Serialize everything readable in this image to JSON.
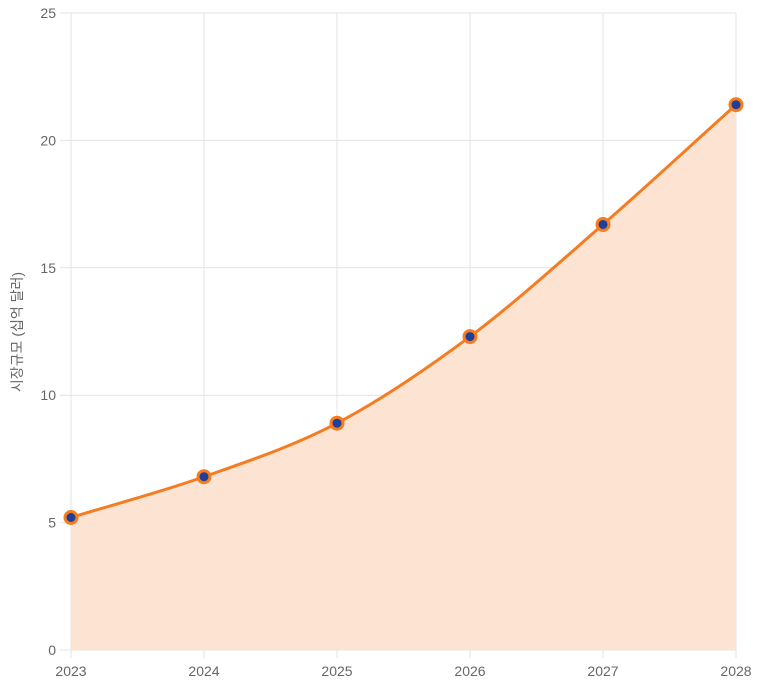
{
  "chart_data": {
    "type": "area",
    "x": [
      "2023",
      "2024",
      "2025",
      "2026",
      "2027",
      "2028"
    ],
    "series": [
      {
        "values": [
          5.2,
          6.8,
          8.9,
          12.3,
          16.7,
          21.4
        ]
      }
    ],
    "title": "",
    "xlabel": "",
    "ylabel": "시장규모 (십억 달러)",
    "ylim": [
      0,
      25
    ],
    "yticks": [
      "0",
      "5",
      "10",
      "15",
      "20",
      "25"
    ],
    "grid": true,
    "legend": "none",
    "colors": {
      "line": "#f57c20",
      "fill": "#fde3d2",
      "point_fill": "#1f3f99",
      "point_border": "#f57c20"
    }
  }
}
